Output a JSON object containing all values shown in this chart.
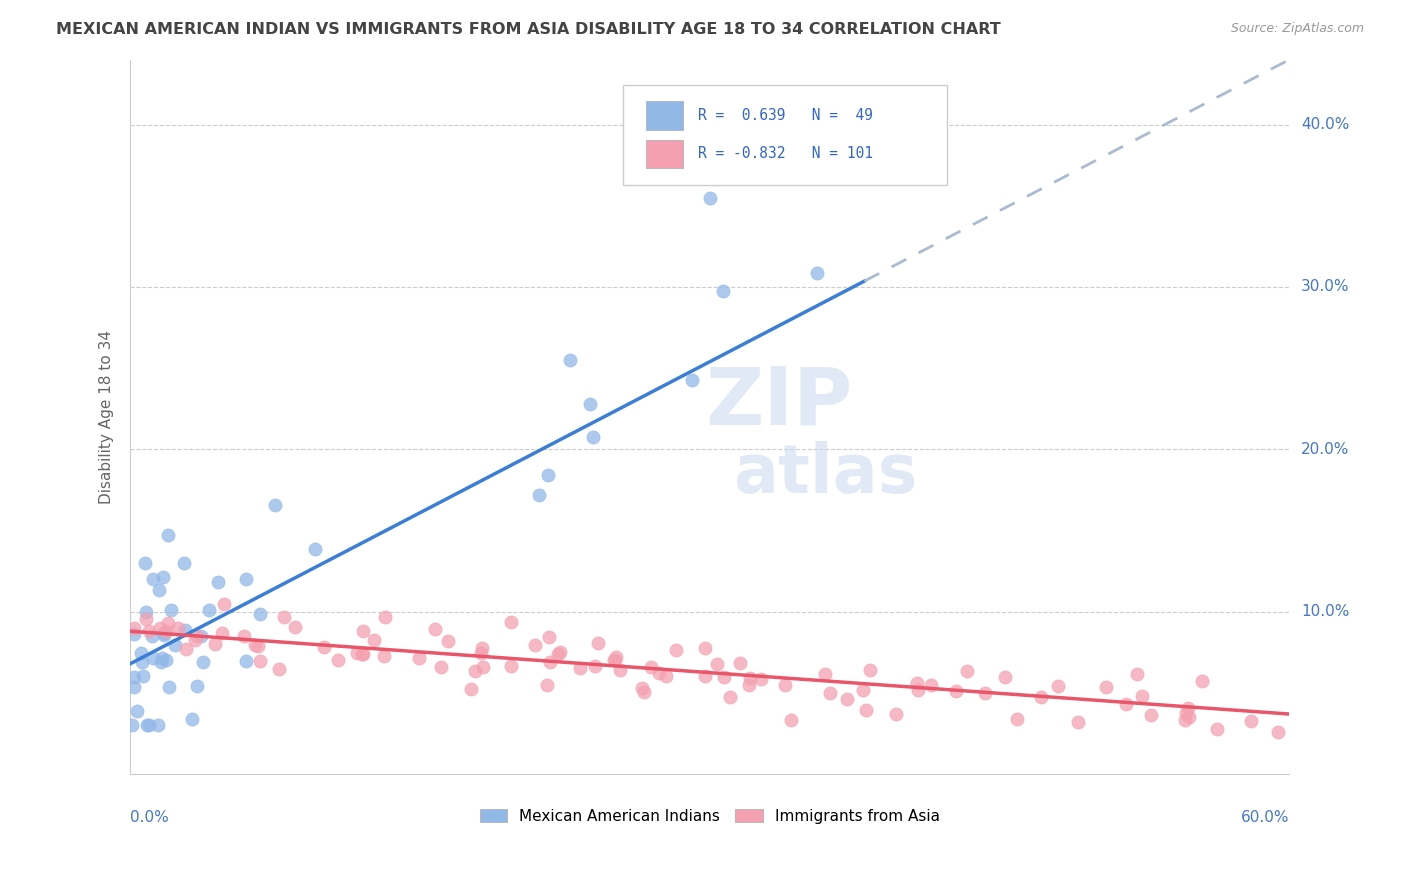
{
  "title": "MEXICAN AMERICAN INDIAN VS IMMIGRANTS FROM ASIA DISABILITY AGE 18 TO 34 CORRELATION CHART",
  "source": "Source: ZipAtlas.com",
  "ylabel": "Disability Age 18 to 34",
  "y_ticks": [
    0.1,
    0.2,
    0.3,
    0.4
  ],
  "y_tick_labels": [
    "10.0%",
    "20.0%",
    "30.0%",
    "40.0%"
  ],
  "x_lim": [
    0.0,
    0.6
  ],
  "y_lim": [
    0.0,
    0.44
  ],
  "blue_color": "#92b8e8",
  "pink_color": "#f4a0b0",
  "blue_line_color": "#3a7fd5",
  "pink_line_color": "#e8566a",
  "dash_line_color": "#aabbd0",
  "grid_color": "#cccccc",
  "legend_r1_text": "R =  0.639   N =  49",
  "legend_r2_text": "R = -0.832   N = 101",
  "blue_legend_label": "Mexican American Indians",
  "pink_legend_label": "Immigrants from Asia",
  "blue_slope": 0.62,
  "blue_intercept": 0.068,
  "pink_slope": -0.085,
  "pink_intercept": 0.088,
  "blue_trend_solid_end": 0.38,
  "blue_trend_dash_end": 0.6
}
